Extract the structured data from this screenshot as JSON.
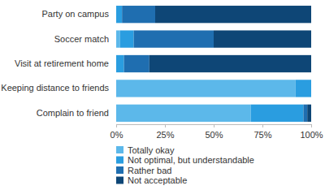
{
  "chart_data": {
    "type": "bar",
    "orientation": "horizontal",
    "stacked": true,
    "legend": "bottom",
    "categories": [
      "Party on campus",
      "Soccer match",
      "Visit at retirement home",
      "Keeping distance to friends",
      "Complain to friend"
    ],
    "series": [
      {
        "name": "Totally okay",
        "color": "#5cb8ea",
        "values": [
          0,
          2,
          0,
          92,
          69
        ]
      },
      {
        "name": "Not optimal, but understandable",
        "color": "#2a9de0",
        "values": [
          3,
          7,
          4,
          8,
          27
        ]
      },
      {
        "name": "Rather bad",
        "color": "#1f6eb0",
        "values": [
          17,
          41,
          13,
          0,
          2
        ]
      },
      {
        "name": "Not acceptable",
        "color": "#0e4676",
        "values": [
          80,
          50,
          83,
          0,
          2
        ]
      }
    ],
    "xlim": [
      0,
      100
    ],
    "xticks": [
      {
        "value": 0,
        "label": "0%"
      },
      {
        "value": 25,
        "label": "25%"
      },
      {
        "value": 50,
        "label": "50%"
      },
      {
        "value": 75,
        "label": "75%"
      },
      {
        "value": 100,
        "label": "100%"
      }
    ]
  }
}
